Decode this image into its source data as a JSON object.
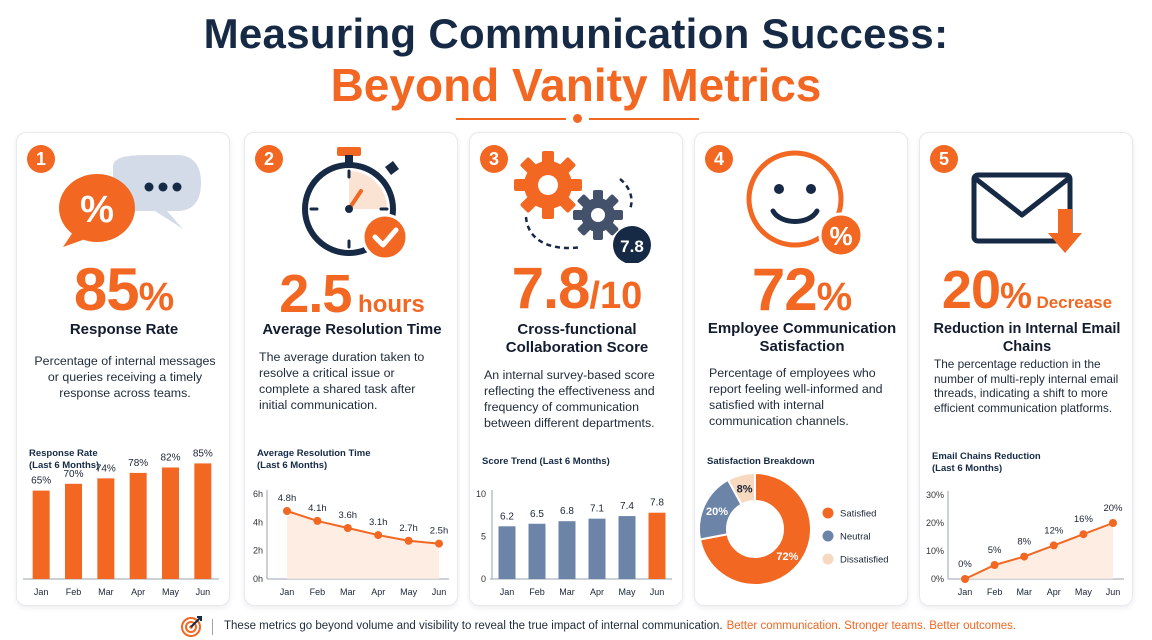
{
  "header": {
    "title_line1": "Measuring Communication Success:",
    "title_line2": "Beyond Vanity Metrics"
  },
  "colors": {
    "accent": "#f26722",
    "navy": "#162a45",
    "slate_bar": "#6c84a8",
    "light_blue": "#d3dbe8",
    "peach": "#f7d9bf"
  },
  "cards": [
    {
      "number": "1",
      "icon": "percent-speech-bubble-icon",
      "value": "85",
      "unit": "%",
      "label": "Response Rate",
      "description": "Percentage of internal messages or queries receiving a timely response across teams.",
      "chart_title": "Response Rate",
      "chart_subtitle": "(Last 6 Months)"
    },
    {
      "number": "2",
      "icon": "stopwatch-check-icon",
      "value": "2.5",
      "unit": " hours",
      "label": "Average Resolution Time",
      "description": "The average duration taken to resolve a critical issue or complete a shared task after initial communication.",
      "chart_title": "Average Resolution Time",
      "chart_subtitle": "(Last 6 Months)"
    },
    {
      "number": "3",
      "icon": "gears-score-icon",
      "icon_badge": "7.8",
      "value": "7.8",
      "unit": "/10",
      "label": "Cross-functional Collaboration Score",
      "description": "An internal survey-based score reflecting the effectiveness and frequency of communication between different departments.",
      "chart_title": "Score Trend (Last 6 Months)"
    },
    {
      "number": "4",
      "icon": "smiley-percent-icon",
      "value": "72",
      "unit": "%",
      "label": "Employee Communication Satisfaction",
      "description": "Percentage of employees who report feeling well-informed and satisfied with internal communication channels.",
      "chart_title": "Satisfaction Breakdown"
    },
    {
      "number": "5",
      "icon": "envelope-down-arrow-icon",
      "value": "20",
      "unit": "%",
      "unit_extra": "Decrease",
      "label": "Reduction in Internal Email Chains",
      "description": "The percentage reduction in the number of multi-reply internal email threads, indicating a shift to more efficient communication platforms.",
      "chart_title": "Email Chains Reduction",
      "chart_subtitle": "(Last 6 Months)"
    }
  ],
  "chart_data": [
    {
      "type": "bar",
      "categories": [
        "Jan",
        "Feb",
        "Mar",
        "Apr",
        "May",
        "Jun"
      ],
      "values": [
        65,
        70,
        74,
        78,
        82,
        85
      ],
      "value_labels": [
        "65%",
        "70%",
        "74%",
        "78%",
        "82%",
        "85%"
      ],
      "title": "Response Rate (Last 6 Months)",
      "ylim": [
        0,
        100
      ],
      "grid": false
    },
    {
      "type": "line",
      "categories": [
        "Jan",
        "Feb",
        "Mar",
        "Apr",
        "May",
        "Jun"
      ],
      "values": [
        4.8,
        4.1,
        3.6,
        3.1,
        2.7,
        2.5
      ],
      "value_labels": [
        "4.8h",
        "4.1h",
        "3.6h",
        "3.1h",
        "2.7h",
        "2.5h"
      ],
      "title": "Average Resolution Time (Last 6 Months)",
      "yticks": [
        "0h",
        "2h",
        "4h",
        "6h"
      ],
      "ylim": [
        0,
        6
      ],
      "grid": false
    },
    {
      "type": "bar",
      "categories": [
        "Jan",
        "Feb",
        "Mar",
        "Apr",
        "May",
        "Jun"
      ],
      "values": [
        6.2,
        6.5,
        6.8,
        7.1,
        7.4,
        7.8
      ],
      "value_labels": [
        "6.2",
        "6.5",
        "6.8",
        "7.1",
        "7.4",
        "7.8"
      ],
      "title": "Score Trend (Last 6 Months)",
      "yticks": [
        "0",
        "5",
        "10"
      ],
      "ylim": [
        0,
        10
      ],
      "highlight_last": true,
      "grid": false
    },
    {
      "type": "pie",
      "donut": true,
      "title": "Satisfaction Breakdown",
      "slices": [
        {
          "label": "Satisfied",
          "value": 72,
          "value_label": "72%",
          "color": "#f26722"
        },
        {
          "label": "Neutral",
          "value": 20,
          "value_label": "20%",
          "color": "#6c84a8"
        },
        {
          "label": "Dissatisfied",
          "value": 8,
          "value_label": "8%",
          "color": "#f7d9bf"
        }
      ],
      "legend": "right"
    },
    {
      "type": "line",
      "categories": [
        "Jan",
        "Feb",
        "Mar",
        "Apr",
        "May",
        "Jun"
      ],
      "values": [
        0,
        5,
        8,
        12,
        16,
        20
      ],
      "value_labels": [
        "0%",
        "5%",
        "8%",
        "12%",
        "16%",
        "20%"
      ],
      "title": "Email Chains Reduction (Last 6 Months)",
      "yticks": [
        "0%",
        "10%",
        "20%",
        "30%"
      ],
      "ylim": [
        0,
        30
      ],
      "grid": false
    }
  ],
  "footer": {
    "icon": "target-arrow-icon",
    "text": "These metrics go beyond volume and visibility to reveal the true impact of internal communication.",
    "tagline": "Better communication. Stronger teams. Better outcomes."
  }
}
